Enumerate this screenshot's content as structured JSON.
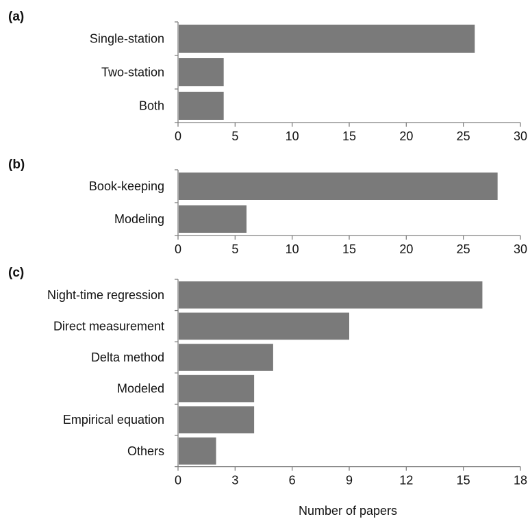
{
  "chart_data": [
    {
      "type": "bar",
      "orientation": "horizontal",
      "panel_label": "(a)",
      "categories": [
        "Single-station",
        "Two-station",
        "Both"
      ],
      "values": [
        26,
        4,
        4
      ],
      "xlim": [
        0,
        30
      ],
      "xticks": [
        "0",
        "5",
        "10",
        "15",
        "20",
        "25",
        "30"
      ],
      "bar_color": "#7a7a7a"
    },
    {
      "type": "bar",
      "orientation": "horizontal",
      "panel_label": "(b)",
      "categories": [
        "Book-keeping",
        "Modeling"
      ],
      "values": [
        28,
        6
      ],
      "xlim": [
        0,
        30
      ],
      "xticks": [
        "0",
        "5",
        "10",
        "15",
        "20",
        "25",
        "30"
      ],
      "bar_color": "#7a7a7a"
    },
    {
      "type": "bar",
      "orientation": "horizontal",
      "panel_label": "(c)",
      "categories": [
        "Night-time regression",
        "Direct measurement",
        "Delta method",
        "Modeled",
        "Empirical equation",
        "Others"
      ],
      "values": [
        16,
        9,
        5,
        4,
        4,
        2
      ],
      "xlim": [
        0,
        18
      ],
      "xticks": [
        "0",
        "3",
        "6",
        "9",
        "12",
        "15",
        "18"
      ],
      "xlabel": "Number of papers",
      "bar_color": "#7a7a7a"
    }
  ]
}
